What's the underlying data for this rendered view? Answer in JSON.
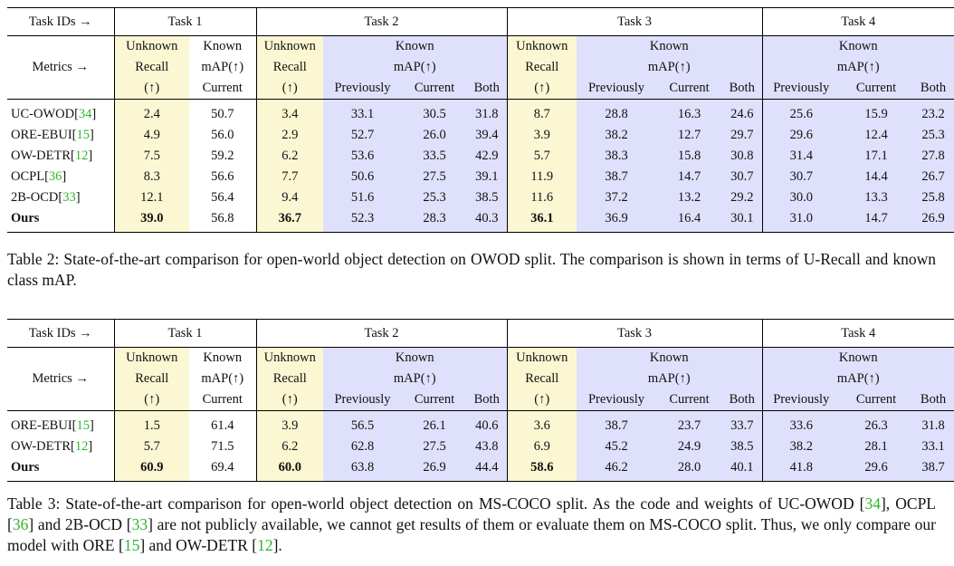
{
  "headers": {
    "task_ids": "Task IDs →",
    "metrics": "Metrics →",
    "task1": "Task 1",
    "task2": "Task 2",
    "task3": "Task 3",
    "task4": "Task 4",
    "unknown_l1": "Unknown",
    "unknown_l2": "Recall",
    "unknown_l3": "(↑)",
    "known_l1": "Known",
    "known_l2": "mAP(↑)",
    "current": "Current",
    "previously": "Previously",
    "both": "Both"
  },
  "table2": {
    "rows": [
      {
        "method": "UC-OWOD",
        "ref": "34",
        "values": [
          "2.4",
          "50.7",
          "3.4",
          "33.1",
          "30.5",
          "31.8",
          "8.7",
          "28.8",
          "16.3",
          "24.6",
          "25.6",
          "15.9",
          "23.2"
        ]
      },
      {
        "method": "ORE-EBUI",
        "ref": "15",
        "values": [
          "4.9",
          "56.0",
          "2.9",
          "52.7",
          "26.0",
          "39.4",
          "3.9",
          "38.2",
          "12.7",
          "29.7",
          "29.6",
          "12.4",
          "25.3"
        ]
      },
      {
        "method": "OW-DETR",
        "ref": "12",
        "values": [
          "7.5",
          "59.2",
          "6.2",
          "53.6",
          "33.5",
          "42.9",
          "5.7",
          "38.3",
          "15.8",
          "30.8",
          "31.4",
          "17.1",
          "27.8"
        ]
      },
      {
        "method": "OCPL",
        "ref": "36",
        "values": [
          "8.3",
          "56.6",
          "7.7",
          "50.6",
          "27.5",
          "39.1",
          "11.9",
          "38.7",
          "14.7",
          "30.7",
          "30.7",
          "14.4",
          "26.7"
        ]
      },
      {
        "method": "2B-OCD",
        "ref": "33",
        "values": [
          "12.1",
          "56.4",
          "9.4",
          "51.6",
          "25.3",
          "38.5",
          "11.6",
          "37.2",
          "13.2",
          "29.2",
          "30.0",
          "13.3",
          "25.8"
        ]
      },
      {
        "method": "Ours",
        "ref": "",
        "values": [
          "39.0",
          "56.8",
          "36.7",
          "52.3",
          "28.3",
          "40.3",
          "36.1",
          "36.9",
          "16.4",
          "30.1",
          "31.0",
          "14.7",
          "26.9"
        ]
      }
    ],
    "caption": "Table 2: State-of-the-art comparison for open-world object detection on OWOD split. The comparison is shown in terms of U-Recall and known class mAP."
  },
  "table3": {
    "rows": [
      {
        "method": "ORE-EBUI",
        "ref": "15",
        "values": [
          "1.5",
          "61.4",
          "3.9",
          "56.5",
          "26.1",
          "40.6",
          "3.6",
          "38.7",
          "23.7",
          "33.7",
          "33.6",
          "26.3",
          "31.8"
        ]
      },
      {
        "method": "OW-DETR",
        "ref": "12",
        "values": [
          "5.7",
          "71.5",
          "6.2",
          "62.8",
          "27.5",
          "43.8",
          "6.9",
          "45.2",
          "24.9",
          "38.5",
          "38.2",
          "28.1",
          "33.1"
        ]
      },
      {
        "method": "Ours",
        "ref": "",
        "values": [
          "60.9",
          "69.4",
          "60.0",
          "63.8",
          "26.9",
          "44.4",
          "58.6",
          "46.2",
          "28.0",
          "40.1",
          "41.8",
          "29.6",
          "38.7"
        ]
      }
    ],
    "caption_parts": {
      "p1": "Table 3: State-of-the-art comparison for open-world object detection on MS-COCO split. As the code and weights of UC-OWOD [",
      "r1": "34",
      "p2": "], OCPL [",
      "r2": "36",
      "p3": "] and 2B-OCD [",
      "r3": "33",
      "p4": "] are not publicly available, we cannot get results of them or evaluate them on MS-COCO split. Thus, we only compare our model with ORE [",
      "r4": "15",
      "p5": "] and OW-DETR [",
      "r5": "12",
      "p6": "]."
    }
  },
  "colors": {
    "unknown_bg": "#fbf7d3",
    "known_bg": "#dfe0fb",
    "ref_link": "#2fb52f"
  }
}
